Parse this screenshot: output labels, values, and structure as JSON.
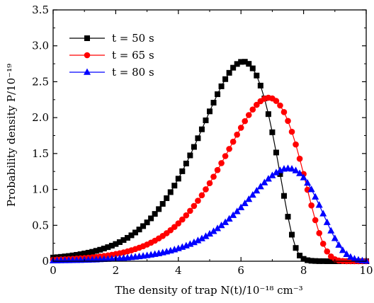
{
  "chart_data": {
    "type": "line",
    "xlabel": "The density of trap N(t)/10⁻¹⁸ cm⁻³",
    "ylabel": "Probability density P/10⁻¹⁹",
    "xlim": [
      0,
      10
    ],
    "ylim": [
      0,
      3.5
    ],
    "x_ticks": [
      "0",
      "2",
      "4",
      "6",
      "8",
      "10"
    ],
    "y_ticks": [
      "0",
      "0.5",
      "1.0",
      "1.5",
      "2.0",
      "2.5",
      "3.0",
      "3.5"
    ],
    "grid": false,
    "legend_position": "top-left",
    "series": [
      {
        "name": "t = 50 s",
        "color": "#000000",
        "marker": "square",
        "x": [
          0.0,
          0.125,
          0.25,
          0.375,
          0.5,
          0.625,
          0.75,
          0.875,
          1.0,
          1.125,
          1.25,
          1.375,
          1.5,
          1.625,
          1.75,
          1.875,
          2.0,
          2.125,
          2.25,
          2.375,
          2.5,
          2.625,
          2.75,
          2.875,
          3.0,
          3.125,
          3.25,
          3.375,
          3.5,
          3.625,
          3.75,
          3.875,
          4.0,
          4.125,
          4.25,
          4.375,
          4.5,
          4.625,
          4.75,
          4.875,
          5.0,
          5.125,
          5.25,
          5.375,
          5.5,
          5.625,
          5.75,
          5.875,
          6.0,
          6.125,
          6.25,
          6.375,
          6.5,
          6.625,
          6.75,
          6.875,
          7.0,
          7.125,
          7.25,
          7.375,
          7.5,
          7.625,
          7.75,
          7.875,
          8.0,
          8.125,
          8.25,
          8.375,
          8.5,
          8.625,
          8.75,
          8.875,
          9.0,
          9.125,
          9.25,
          9.375,
          9.5,
          9.625,
          9.75,
          9.875,
          10.0
        ],
        "y": [
          0.051,
          0.056,
          0.061,
          0.067,
          0.073,
          0.081,
          0.089,
          0.098,
          0.108,
          0.119,
          0.131,
          0.145,
          0.16,
          0.177,
          0.196,
          0.217,
          0.24,
          0.266,
          0.295,
          0.326,
          0.361,
          0.4,
          0.442,
          0.489,
          0.541,
          0.597,
          0.659,
          0.726,
          0.799,
          0.878,
          0.962,
          1.053,
          1.15,
          1.253,
          1.361,
          1.474,
          1.592,
          1.713,
          1.837,
          1.962,
          2.087,
          2.208,
          2.326,
          2.436,
          2.536,
          2.624,
          2.695,
          2.747,
          2.776,
          2.778,
          2.749,
          2.686,
          2.586,
          2.446,
          2.267,
          2.049,
          1.796,
          1.514,
          1.214,
          0.91,
          0.62,
          0.37,
          0.185,
          0.079,
          0.033,
          0.014,
          0.006,
          0.003,
          0.001,
          0.001,
          0.0,
          0.0,
          0.0,
          0.0,
          0.0,
          0.0,
          0.0,
          0.0,
          0.0,
          0.0,
          0.0
        ]
      },
      {
        "name": "t = 65 s",
        "color": "#ff0000",
        "marker": "circle",
        "x": [
          0.0,
          0.125,
          0.25,
          0.375,
          0.5,
          0.625,
          0.75,
          0.875,
          1.0,
          1.125,
          1.25,
          1.375,
          1.5,
          1.625,
          1.75,
          1.875,
          2.0,
          2.125,
          2.25,
          2.375,
          2.5,
          2.625,
          2.75,
          2.875,
          3.0,
          3.125,
          3.25,
          3.375,
          3.5,
          3.625,
          3.75,
          3.875,
          4.0,
          4.125,
          4.25,
          4.375,
          4.5,
          4.625,
          4.75,
          4.875,
          5.0,
          5.125,
          5.25,
          5.375,
          5.5,
          5.625,
          5.75,
          5.875,
          6.0,
          6.125,
          6.25,
          6.375,
          6.5,
          6.625,
          6.75,
          6.875,
          7.0,
          7.125,
          7.25,
          7.375,
          7.5,
          7.625,
          7.75,
          7.875,
          8.0,
          8.125,
          8.25,
          8.375,
          8.5,
          8.625,
          8.75,
          8.875,
          9.0,
          9.125,
          9.25,
          9.375,
          9.5,
          9.625,
          9.75,
          9.875,
          10.0
        ],
        "y": [
          0.021,
          0.023,
          0.025,
          0.027,
          0.03,
          0.033,
          0.036,
          0.04,
          0.044,
          0.049,
          0.054,
          0.06,
          0.066,
          0.073,
          0.081,
          0.09,
          0.1,
          0.111,
          0.123,
          0.137,
          0.152,
          0.169,
          0.188,
          0.209,
          0.232,
          0.258,
          0.286,
          0.318,
          0.352,
          0.39,
          0.432,
          0.477,
          0.527,
          0.581,
          0.639,
          0.702,
          0.77,
          0.842,
          0.919,
          1.001,
          1.087,
          1.177,
          1.27,
          1.366,
          1.464,
          1.564,
          1.664,
          1.763,
          1.859,
          1.951,
          2.036,
          2.113,
          2.178,
          2.229,
          2.263,
          2.277,
          2.267,
          2.232,
          2.169,
          2.077,
          1.954,
          1.803,
          1.626,
          1.428,
          1.215,
          0.995,
          0.777,
          0.572,
          0.391,
          0.243,
          0.136,
          0.066,
          0.027,
          0.009,
          0.003,
          0.001,
          0.0,
          0.0,
          0.0,
          0.0,
          0.0
        ]
      },
      {
        "name": "t = 80 s",
        "color": "#0000ff",
        "marker": "triangle",
        "x": [
          0.0,
          0.125,
          0.25,
          0.375,
          0.5,
          0.625,
          0.75,
          0.875,
          1.0,
          1.125,
          1.25,
          1.375,
          1.5,
          1.625,
          1.75,
          1.875,
          2.0,
          2.125,
          2.25,
          2.375,
          2.5,
          2.625,
          2.75,
          2.875,
          3.0,
          3.125,
          3.25,
          3.375,
          3.5,
          3.625,
          3.75,
          3.875,
          4.0,
          4.125,
          4.25,
          4.375,
          4.5,
          4.625,
          4.75,
          4.875,
          5.0,
          5.125,
          5.25,
          5.375,
          5.5,
          5.625,
          5.75,
          5.875,
          6.0,
          6.125,
          6.25,
          6.375,
          6.5,
          6.625,
          6.75,
          6.875,
          7.0,
          7.125,
          7.25,
          7.375,
          7.5,
          7.625,
          7.75,
          7.875,
          8.0,
          8.125,
          8.25,
          8.375,
          8.5,
          8.625,
          8.75,
          8.875,
          9.0,
          9.125,
          9.25,
          9.375,
          9.5,
          9.625,
          9.75,
          9.875,
          10.0
        ],
        "y": [
          0.008,
          0.009,
          0.01,
          0.011,
          0.012,
          0.013,
          0.014,
          0.015,
          0.017,
          0.018,
          0.02,
          0.022,
          0.025,
          0.027,
          0.03,
          0.033,
          0.036,
          0.04,
          0.044,
          0.049,
          0.054,
          0.06,
          0.066,
          0.073,
          0.08,
          0.089,
          0.098,
          0.108,
          0.12,
          0.132,
          0.146,
          0.161,
          0.178,
          0.196,
          0.216,
          0.238,
          0.262,
          0.288,
          0.316,
          0.347,
          0.381,
          0.417,
          0.456,
          0.498,
          0.542,
          0.59,
          0.64,
          0.693,
          0.748,
          0.805,
          0.863,
          0.922,
          0.981,
          1.039,
          1.095,
          1.147,
          1.194,
          1.234,
          1.265,
          1.285,
          1.293,
          1.286,
          1.263,
          1.223,
          1.165,
          1.09,
          1.0,
          0.896,
          0.782,
          0.662,
          0.541,
          0.424,
          0.318,
          0.226,
          0.152,
          0.097,
          0.058,
          0.033,
          0.018,
          0.009,
          0.004
        ]
      }
    ]
  }
}
